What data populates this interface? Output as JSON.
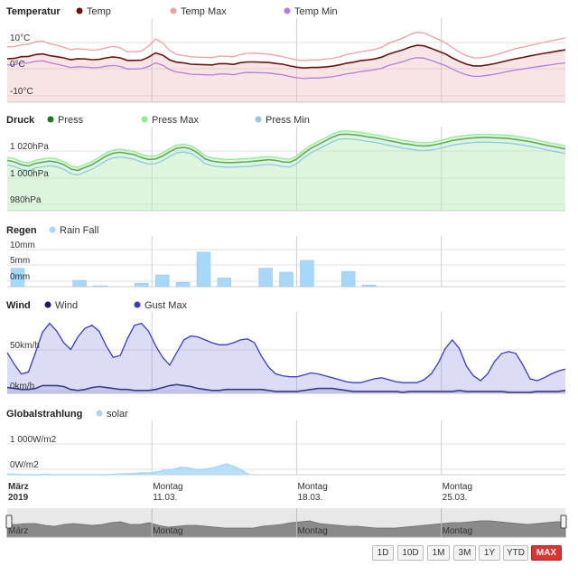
{
  "chart_data": [
    {
      "type": "line",
      "title": "Temperatur",
      "ylim": [
        -12,
        20
      ],
      "yticks": [
        "10°C",
        "0°C",
        "-10°C"
      ],
      "ytick_values": [
        10,
        0,
        -10
      ],
      "series": [
        {
          "name": "Temp",
          "color": "#6b1414",
          "values": [
            5.3,
            5.4,
            6.1,
            6.2,
            6.9,
            7.2,
            6.5,
            6.1,
            5.6,
            4.9,
            5.3,
            5.2,
            4.9,
            5.0,
            5.6,
            6.0,
            5.6,
            4.6,
            4.6,
            4.7,
            5.9,
            7.6,
            6.7,
            4.8,
            3.9,
            3.6,
            3.1,
            3.0,
            2.9,
            2.8,
            3.3,
            3.3,
            3.0,
            3.7,
            4.0,
            4.0,
            3.9,
            3.8,
            3.4,
            3.1,
            2.4,
            1.9,
            1.6,
            1.8,
            1.8,
            2.0,
            2.3,
            2.8,
            3.5,
            3.9,
            4.5,
            4.8,
            5.2,
            5.9,
            7.1,
            8.0,
            8.8,
            9.9,
            10.6,
            10.4,
            9.4,
            8.3,
            7.2,
            5.6,
            4.2,
            3.1,
            2.4,
            2.4,
            2.8,
            3.3,
            4.0,
            4.7,
            5.3,
            5.8,
            6.4,
            6.9,
            7.4,
            7.9,
            8.4,
            8.8
          ]
        },
        {
          "name": "Temp Max",
          "color": "#f0a0a0",
          "values": [
            10.0,
            10.1,
            10.8,
            11.1,
            12.0,
            12.3,
            11.3,
            10.6,
            9.8,
            8.8,
            9.3,
            9.0,
            8.7,
            8.9,
            9.6,
            10.2,
            9.6,
            8.0,
            8.1,
            8.3,
            10.3,
            13.1,
            11.6,
            8.5,
            7.0,
            6.5,
            6.0,
            5.9,
            5.8,
            5.7,
            6.3,
            6.3,
            6.0,
            6.9,
            7.4,
            7.5,
            7.3,
            7.1,
            6.6,
            6.1,
            5.4,
            4.8,
            4.5,
            4.8,
            4.8,
            5.1,
            5.4,
            6.0,
            6.9,
            7.4,
            8.1,
            8.5,
            9.0,
            9.8,
            11.4,
            12.5,
            13.5,
            14.9,
            15.8,
            15.5,
            14.3,
            13.0,
            11.6,
            9.7,
            7.9,
            6.5,
            5.6,
            5.6,
            6.1,
            6.7,
            7.6,
            8.5,
            9.3,
            9.9,
            10.6,
            11.2,
            11.8,
            12.4,
            13.0,
            13.5
          ]
        },
        {
          "name": "Temp Min",
          "color": "#b47ee0",
          "values": [
            2.8,
            2.9,
            3.5,
            3.6,
            4.2,
            4.5,
            3.7,
            3.1,
            2.5,
            1.8,
            2.1,
            2.0,
            1.7,
            1.8,
            2.3,
            2.6,
            2.2,
            1.2,
            1.2,
            1.3,
            2.2,
            3.6,
            2.7,
            0.9,
            0.0,
            -0.4,
            -0.9,
            -1.0,
            -1.1,
            -1.2,
            -0.8,
            -0.8,
            -1.1,
            -0.5,
            -0.2,
            -0.2,
            -0.3,
            -0.4,
            -0.8,
            -1.1,
            -1.8,
            -2.3,
            -2.6,
            -2.4,
            -2.4,
            -2.2,
            -1.9,
            -1.4,
            -0.8,
            -0.4,
            0.2,
            0.5,
            0.9,
            1.5,
            2.6,
            3.4,
            4.1,
            5.1,
            5.7,
            5.5,
            4.6,
            3.6,
            2.6,
            1.2,
            -0.1,
            -1.1,
            -1.7,
            -1.7,
            -1.3,
            -0.9,
            -0.3,
            0.3,
            0.8,
            1.2,
            1.7,
            2.1,
            2.5,
            2.9,
            3.3,
            3.6
          ]
        }
      ]
    },
    {
      "type": "line",
      "title": "Druck",
      "ylim": [
        978,
        1034
      ],
      "yticks": [
        "1 020hPa",
        "1 000hPa",
        "980hPa"
      ],
      "ytick_values": [
        1020,
        1000,
        980
      ],
      "series": [
        {
          "name": "Press",
          "color": "#1a7a1a",
          "values": [
            1013.0,
            1012.0,
            1010.0,
            1009.0,
            1011.0,
            1011.8,
            1012.5,
            1011.8,
            1010.0,
            1007.0,
            1006.0,
            1008.0,
            1010.0,
            1013.0,
            1016.0,
            1018.0,
            1018.6,
            1017.8,
            1017.0,
            1015.0,
            1013.6,
            1014.0,
            1016.0,
            1019.0,
            1021.5,
            1022.0,
            1021.0,
            1018.0,
            1014.0,
            1012.5,
            1011.8,
            1011.5,
            1011.5,
            1011.8,
            1012.0,
            1012.5,
            1013.0,
            1013.5,
            1013.0,
            1012.0,
            1011.6,
            1014.0,
            1018.0,
            1021.5,
            1024.0,
            1026.5,
            1029.0,
            1031.0,
            1031.3,
            1030.9,
            1030.3,
            1029.4,
            1028.8,
            1027.8,
            1026.7,
            1025.8,
            1024.7,
            1024.1,
            1023.3,
            1023.0,
            1023.4,
            1024.3,
            1025.5,
            1026.8,
            1027.6,
            1028.2,
            1028.7,
            1028.9,
            1028.9,
            1028.7,
            1028.5,
            1028.2,
            1027.6,
            1026.8,
            1026.0,
            1025.0,
            1023.8,
            1022.9,
            1021.9,
            1021.0
          ]
        },
        {
          "name": "Press Max",
          "color": "#90ee90",
          "values": [
            1015.2,
            1014.2,
            1012.2,
            1011.2,
            1013.2,
            1014.0,
            1014.7,
            1014.0,
            1012.2,
            1009.2,
            1008.2,
            1010.2,
            1012.2,
            1015.2,
            1018.2,
            1020.2,
            1020.8,
            1020.0,
            1019.2,
            1017.2,
            1015.8,
            1016.2,
            1018.2,
            1021.2,
            1023.7,
            1024.2,
            1023.2,
            1020.2,
            1016.2,
            1014.7,
            1014.0,
            1013.7,
            1013.7,
            1014.0,
            1014.2,
            1014.7,
            1015.2,
            1015.7,
            1015.2,
            1014.2,
            1013.8,
            1016.2,
            1020.2,
            1023.7,
            1026.2,
            1028.7,
            1031.2,
            1033.2,
            1033.5,
            1033.1,
            1032.5,
            1031.6,
            1031.0,
            1030.0,
            1028.9,
            1028.0,
            1026.9,
            1026.3,
            1025.5,
            1025.2,
            1025.6,
            1026.5,
            1027.7,
            1029.0,
            1029.8,
            1030.4,
            1030.9,
            1031.1,
            1031.1,
            1030.9,
            1030.7,
            1030.4,
            1029.8,
            1029.0,
            1028.2,
            1027.2,
            1026.0,
            1025.1,
            1024.1,
            1023.2
          ]
        },
        {
          "name": "Press Min",
          "color": "#8ec8ee",
          "values": [
            1009.8,
            1008.8,
            1006.8,
            1005.8,
            1007.8,
            1008.6,
            1009.3,
            1008.6,
            1006.8,
            1003.8,
            1002.8,
            1004.8,
            1006.8,
            1009.8,
            1012.8,
            1014.8,
            1015.4,
            1014.6,
            1013.8,
            1011.8,
            1010.4,
            1010.8,
            1012.8,
            1015.8,
            1018.3,
            1018.8,
            1017.8,
            1014.8,
            1010.8,
            1009.3,
            1008.6,
            1008.3,
            1008.3,
            1008.6,
            1008.8,
            1009.3,
            1009.8,
            1010.3,
            1009.8,
            1008.8,
            1008.4,
            1010.8,
            1014.8,
            1018.3,
            1020.8,
            1023.3,
            1025.8,
            1027.8,
            1028.1,
            1027.7,
            1027.1,
            1026.2,
            1025.6,
            1024.6,
            1023.5,
            1022.6,
            1021.5,
            1020.9,
            1020.1,
            1019.8,
            1020.2,
            1021.1,
            1022.3,
            1023.6,
            1024.4,
            1025.0,
            1025.5,
            1025.7,
            1025.7,
            1025.5,
            1025.3,
            1025.0,
            1024.4,
            1023.6,
            1022.8,
            1021.8,
            1020.6,
            1019.7,
            1018.7,
            1017.8
          ]
        }
      ]
    },
    {
      "type": "bar",
      "title": "Regen",
      "ylim": [
        0,
        12
      ],
      "yticks": [
        "10mm",
        "5mm",
        "0mm"
      ],
      "ytick_values": [
        10,
        5,
        0
      ],
      "series": [
        {
          "name": "Rain Fall",
          "color": "#a8d8f7",
          "day_index": [
            0,
            3,
            4,
            6,
            7,
            8,
            9,
            10,
            12,
            13,
            14,
            16,
            17
          ],
          "values": [
            4.7,
            1.6,
            0.2,
            0.9,
            3.0,
            1.1,
            8.8,
            2.2,
            4.7,
            3.7,
            6.7,
            3.9,
            0.4
          ]
        }
      ]
    },
    {
      "type": "area",
      "title": "Wind",
      "ylim": [
        0,
        80
      ],
      "yticks": [
        "50km/h",
        "0km/h"
      ],
      "ytick_values": [
        50,
        0
      ],
      "series": [
        {
          "name": "Wind",
          "color": "#1a1a5e",
          "values": [
            6,
            5,
            4,
            4,
            5,
            8,
            8,
            8,
            7,
            4,
            3,
            4,
            6,
            7,
            6,
            5,
            4,
            4,
            3,
            3,
            3,
            4,
            6,
            8,
            9,
            8,
            7,
            5,
            4,
            3,
            3,
            4,
            4,
            4,
            4,
            4,
            4,
            3,
            2,
            2,
            2,
            2,
            3,
            4,
            5,
            5,
            5,
            4,
            3,
            2,
            2,
            2,
            2,
            2,
            2,
            2,
            1,
            2,
            2,
            2,
            2,
            2,
            2,
            2,
            3,
            2,
            2,
            2,
            2,
            2,
            2,
            1,
            1,
            1,
            1,
            2,
            2,
            2,
            2,
            3
          ]
        },
        {
          "name": "Gust Max",
          "color": "#3a3acc",
          "values": [
            42,
            30,
            20,
            22,
            42,
            63,
            72,
            64,
            52,
            45,
            58,
            67,
            70,
            64,
            49,
            37,
            39,
            56,
            70,
            72,
            64,
            49,
            37,
            29,
            42,
            55,
            59,
            58,
            55,
            52,
            50,
            50,
            52,
            55,
            56,
            52,
            38,
            27,
            20,
            18,
            17,
            17,
            19,
            21,
            20,
            18,
            16,
            14,
            12,
            11,
            11,
            13,
            15,
            16,
            14,
            12,
            11,
            11,
            11,
            14,
            20,
            31,
            46,
            55,
            46,
            28,
            18,
            13,
            20,
            33,
            41,
            43,
            41,
            29,
            15,
            13,
            16,
            20,
            23,
            25
          ]
        }
      ]
    },
    {
      "type": "area",
      "title": "Globalstrahlung",
      "ylim": [
        0,
        1500
      ],
      "yticks": [
        "1 000W/m2",
        "0W/m2"
      ],
      "ytick_values": [
        1000,
        0
      ],
      "series": [
        {
          "name": "solar",
          "color": "#a8d8f7",
          "values": [
            20,
            10,
            0,
            0,
            0,
            10,
            0,
            0,
            0,
            0,
            0,
            0,
            0,
            0,
            10,
            20,
            30,
            40,
            60,
            50,
            90,
            140,
            160,
            220,
            200,
            150,
            160,
            190,
            250,
            320,
            240,
            130,
            0
          ]
        }
      ]
    }
  ],
  "x_axis": {
    "labels": [
      {
        "line1": "März",
        "line2": "2019",
        "bold": true,
        "day": 0
      },
      {
        "line1": "Montag",
        "line2": "11.03.",
        "bold": false,
        "day": 7
      },
      {
        "line1": "Montag",
        "line2": "18.03.",
        "bold": false,
        "day": 14
      },
      {
        "line1": "Montag",
        "line2": "25.03.",
        "bold": false,
        "day": 21
      }
    ],
    "day_count": 27
  },
  "navigator": {
    "labels": [
      "März",
      "Montag",
      "Montag",
      "Montag"
    ],
    "values": [
      14,
      14,
      15,
      15,
      13,
      12,
      14,
      15,
      14,
      13,
      14,
      16,
      17,
      14,
      14,
      16,
      13,
      11,
      12,
      13,
      13,
      12,
      11,
      10,
      10,
      10,
      10,
      12,
      13,
      14,
      16,
      17,
      18,
      15,
      14,
      13,
      12,
      12,
      11,
      10,
      10,
      10,
      11,
      12,
      13,
      14,
      15,
      16,
      16,
      17,
      18,
      18,
      17,
      16,
      15,
      14,
      15,
      16,
      17,
      17
    ]
  },
  "range_buttons": [
    "1D",
    "10D",
    "1M",
    "3M",
    "1Y",
    "YTD",
    "MAX"
  ],
  "range_selected": "MAX",
  "colors": {
    "grid": "#e0e0e0",
    "vgrid": "#d0d0d0",
    "nav_fill": "#8a8a8a",
    "nav_bg": "#e8e8e8"
  }
}
